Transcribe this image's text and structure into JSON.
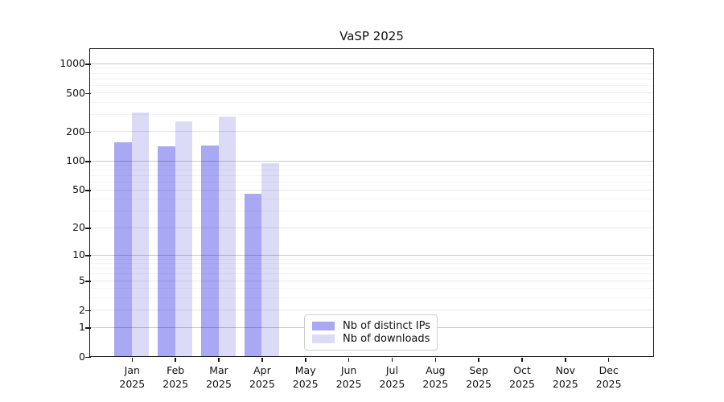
{
  "chart_data": {
    "type": "bar",
    "title": "VaSP 2025",
    "categories": [
      "Jan 2025",
      "Feb 2025",
      "Mar 2025",
      "Apr 2025",
      "May 2025",
      "Jun 2025",
      "Jul 2025",
      "Aug 2025",
      "Sep 2025",
      "Oct 2025",
      "Nov 2025",
      "Dec 2025"
    ],
    "series": [
      {
        "name": "Nb of distinct IPs",
        "color": "#a8a8f5",
        "values": [
          153,
          140,
          144,
          45,
          null,
          null,
          null,
          null,
          null,
          null,
          null,
          null
        ]
      },
      {
        "name": "Nb of downloads",
        "color": "#dbdbf8",
        "values": [
          310,
          254,
          285,
          93,
          null,
          null,
          null,
          null,
          null,
          null,
          null,
          null
        ]
      }
    ],
    "xlabel": "",
    "ylabel": "",
    "y_axis": {
      "scale": "log1p",
      "ticks": [
        0,
        1,
        2,
        5,
        10,
        20,
        50,
        100,
        200,
        500,
        1000
      ],
      "max": 1400
    },
    "grid": "on",
    "grid_colors": {
      "major": "#c9c9c9",
      "mid": "#e7e7e7",
      "minor": "#f3f3f3"
    },
    "legend": {
      "position": "lower-center-inside",
      "items": [
        "Nb of distinct IPs",
        "Nb of downloads"
      ]
    }
  }
}
